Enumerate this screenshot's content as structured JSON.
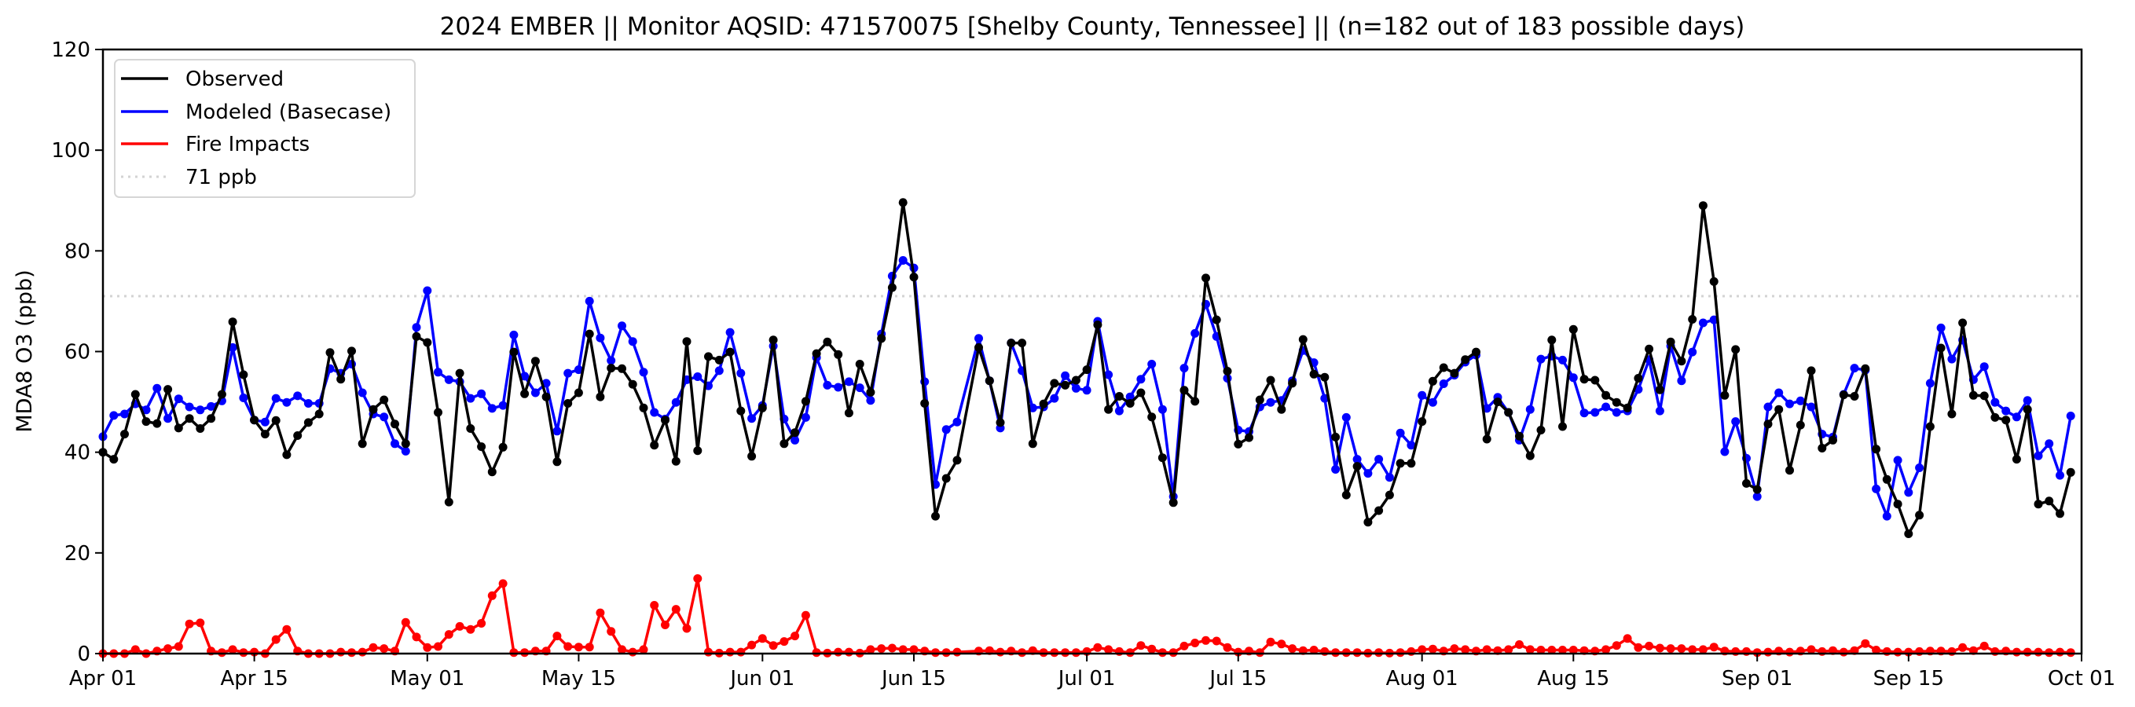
{
  "chart_data": {
    "type": "line",
    "title": "2024 EMBER || Monitor AQSID: 471570075 [Shelby County, Tennessee] || (n=182 out of 183 possible days)",
    "xlabel": "",
    "ylabel": "MDA8 O3 (ppb)",
    "ylim": [
      0,
      120
    ],
    "yticks": [
      "0",
      "20",
      "40",
      "60",
      "80",
      "100",
      "120"
    ],
    "x_start": "2024-04-01",
    "x_range_days": [
      0,
      183
    ],
    "xticks": [
      {
        "label": "Apr 01",
        "day": 0
      },
      {
        "label": "Apr 15",
        "day": 14
      },
      {
        "label": "May 01",
        "day": 30
      },
      {
        "label": "May 15",
        "day": 44
      },
      {
        "label": "Jun 01",
        "day": 61
      },
      {
        "label": "Jun 15",
        "day": 75
      },
      {
        "label": "Jul 01",
        "day": 91
      },
      {
        "label": "Jul 15",
        "day": 105
      },
      {
        "label": "Aug 01",
        "day": 122
      },
      {
        "label": "Aug 15",
        "day": 136
      },
      {
        "label": "Sep 01",
        "day": 153
      },
      {
        "label": "Sep 15",
        "day": 167
      },
      {
        "label": "Oct 01",
        "day": 183
      }
    ],
    "grid": false,
    "legend_position": "top-left",
    "reference_line": {
      "label": "71 ppb",
      "value": 71,
      "color": "#d3d3d3"
    },
    "series": [
      {
        "name": "Observed",
        "color": "#000000",
        "values": [
          40.0,
          38.6,
          43.6,
          51.5,
          46.1,
          45.7,
          52.5,
          44.8,
          46.7,
          44.7,
          46.7,
          51.5,
          65.9,
          55.4,
          46.4,
          43.6,
          46.3,
          39.5,
          43.3,
          45.9,
          47.6,
          59.8,
          54.5,
          60.1,
          41.7,
          48.5,
          50.4,
          45.6,
          41.7,
          63.0,
          61.8,
          47.9,
          30.1,
          55.7,
          44.7,
          41.1,
          36.1,
          41.0,
          59.9,
          51.6,
          58.1,
          51.0,
          38.1,
          49.7,
          51.8,
          63.5,
          51.0,
          56.7,
          56.6,
          53.5,
          48.8,
          41.4,
          46.4,
          38.2,
          62.0,
          40.3,
          59.0,
          58.3,
          59.9,
          48.2,
          39.2,
          48.8,
          62.3,
          41.7,
          43.9,
          50.1,
          59.6,
          61.9,
          59.4,
          47.8,
          57.5,
          51.9,
          62.6,
          72.7,
          89.6,
          74.8,
          49.7,
          27.3,
          34.8,
          38.4,
          null,
          60.8,
          54.2,
          45.9,
          61.7,
          61.7,
          41.7,
          49.6,
          53.7,
          53.3,
          54.3,
          56.4,
          65.3,
          48.5,
          51.1,
          49.7,
          51.8,
          47.0,
          38.9,
          30.0,
          52.3,
          50.1,
          74.6,
          66.3,
          56.1,
          41.6,
          42.9,
          50.4,
          54.3,
          48.5,
          53.7,
          62.4,
          55.5,
          54.9,
          43.0,
          31.5,
          37.2,
          26.1,
          28.4,
          31.5,
          37.8,
          37.8,
          46.1,
          54.1,
          56.8,
          55.7,
          58.4,
          59.9,
          42.6,
          50.0,
          47.9,
          43.2,
          39.3,
          44.4,
          62.3,
          45.1,
          64.4,
          54.5,
          54.3,
          51.3,
          49.9,
          48.8,
          54.7,
          60.5,
          52.4,
          61.9,
          58.1,
          66.4,
          89.0,
          73.9,
          51.3,
          60.4,
          33.8,
          32.6,
          45.6,
          48.5,
          36.4,
          45.4,
          56.2,
          40.8,
          42.4,
          51.4,
          51.1,
          56.6,
          40.6,
          34.6,
          29.7,
          23.8,
          27.5,
          45.1,
          60.7,
          47.6,
          65.7,
          51.3,
          51.2,
          46.9,
          46.4,
          38.6,
          48.5,
          29.7,
          30.3,
          27.8,
          36.0
        ]
      },
      {
        "name": "Modeled (Basecase)",
        "color": "#0000ff",
        "values": [
          43.1,
          47.3,
          47.6,
          49.6,
          48.4,
          52.7,
          46.7,
          50.6,
          49.0,
          48.4,
          49.1,
          50.2,
          60.8,
          50.8,
          46.4,
          46.0,
          50.7,
          49.9,
          51.2,
          49.7,
          49.7,
          56.6,
          55.7,
          57.5,
          51.8,
          47.6,
          47.0,
          41.7,
          40.2,
          64.8,
          72.1,
          55.9,
          54.4,
          54.0,
          50.7,
          51.6,
          48.7,
          49.3,
          63.3,
          55.1,
          51.8,
          53.7,
          44.2,
          55.7,
          56.4,
          70.0,
          62.7,
          58.2,
          65.1,
          62.0,
          55.9,
          47.9,
          46.6,
          49.9,
          54.4,
          55.0,
          53.2,
          56.2,
          63.8,
          55.7,
          46.7,
          49.3,
          61.1,
          46.6,
          42.4,
          46.9,
          58.8,
          53.3,
          52.9,
          54.0,
          52.8,
          50.3,
          63.5,
          75.0,
          78.1,
          76.6,
          54.0,
          33.6,
          44.5,
          46.0,
          null,
          62.6,
          54.2,
          44.8,
          61.7,
          56.2,
          48.8,
          49.0,
          50.7,
          55.2,
          52.7,
          52.3,
          66.0,
          55.4,
          48.2,
          51.0,
          54.5,
          57.5,
          48.5,
          31.2,
          56.7,
          63.6,
          69.4,
          63.0,
          54.7,
          44.4,
          44.1,
          49.0,
          49.9,
          50.3,
          54.2,
          60.2,
          57.8,
          50.7,
          36.6,
          46.9,
          38.6,
          35.8,
          38.6,
          35.0,
          43.8,
          41.4,
          51.3,
          49.9,
          53.6,
          55.3,
          57.9,
          59.3,
          48.7,
          50.9,
          47.9,
          42.4,
          48.5,
          58.5,
          59.1,
          58.3,
          54.8,
          47.8,
          47.9,
          49.0,
          47.9,
          48.2,
          52.5,
          58.4,
          48.2,
          61.1,
          54.2,
          59.9,
          65.7,
          66.3,
          40.1,
          46.1,
          38.8,
          31.2,
          49.0,
          51.8,
          49.6,
          50.2,
          49.0,
          43.6,
          43.0,
          51.5,
          56.7,
          56.3,
          32.7,
          27.3,
          38.4,
          32.0,
          36.9,
          53.7,
          64.7,
          58.5,
          62.3,
          54.4,
          57.0,
          49.9,
          48.2,
          47.0,
          50.3,
          39.3,
          41.7,
          35.4,
          47.2
        ]
      },
      {
        "name": "Fire Impacts",
        "color": "#ff0000",
        "values": [
          0,
          0,
          0,
          0.8,
          0,
          0.5,
          1.0,
          1.4,
          5.9,
          6.1,
          0.5,
          0.2,
          0.8,
          0.2,
          0.3,
          0,
          2.8,
          4.8,
          0.5,
          0,
          0,
          0,
          0.3,
          0.2,
          0.3,
          1.2,
          1.0,
          0.5,
          6.2,
          3.3,
          1.2,
          1.4,
          3.8,
          5.4,
          4.8,
          6.0,
          11.5,
          13.9,
          0.2,
          0.2,
          0.5,
          0.5,
          3.5,
          1.4,
          1.3,
          1.3,
          8.1,
          4.4,
          0.8,
          0.3,
          0.8,
          9.6,
          5.7,
          8.8,
          5.0,
          14.9,
          0.3,
          0.1,
          0.3,
          0.3,
          1.7,
          3.0,
          1.6,
          2.4,
          3.5,
          7.6,
          0.2,
          0.1,
          0.3,
          0.3,
          0.1,
          0.8,
          1.0,
          1.1,
          0.8,
          0.8,
          0.5,
          0.2,
          0.2,
          0.3,
          null,
          0.5,
          0.6,
          0.3,
          0.5,
          0.2,
          0.6,
          0.2,
          0.2,
          0.2,
          0.2,
          0.4,
          1.2,
          0.8,
          0.4,
          0.2,
          1.6,
          0.9,
          0.2,
          0.2,
          1.5,
          2.1,
          2.6,
          2.5,
          1.2,
          0.3,
          0.5,
          0.2,
          2.3,
          1.9,
          1.0,
          0.6,
          0.7,
          0.4,
          0.2,
          0.2,
          0.2,
          0.1,
          0.2,
          0.1,
          0.2,
          0.4,
          0.8,
          0.9,
          0.5,
          1.0,
          0.8,
          0.5,
          0.8,
          0.6,
          0.8,
          1.8,
          0.8,
          0.7,
          0.7,
          0.7,
          0.7,
          0.6,
          0.5,
          0.8,
          1.6,
          3.0,
          1.2,
          1.5,
          1.1,
          1.0,
          1.0,
          0.8,
          0.8,
          1.3,
          0.5,
          0.4,
          0.4,
          0.2,
          0.3,
          0.5,
          0.3,
          0.5,
          0.8,
          0.4,
          0.6,
          0.3,
          0.6,
          2.0,
          0.7,
          0.4,
          0.3,
          0.3,
          0.4,
          0.5,
          0.5,
          0.4,
          1.2,
          0.6,
          1.5,
          0.4,
          0.5,
          0.3,
          0.3,
          0.3,
          0.2,
          0.3,
          0.2
        ]
      }
    ]
  }
}
